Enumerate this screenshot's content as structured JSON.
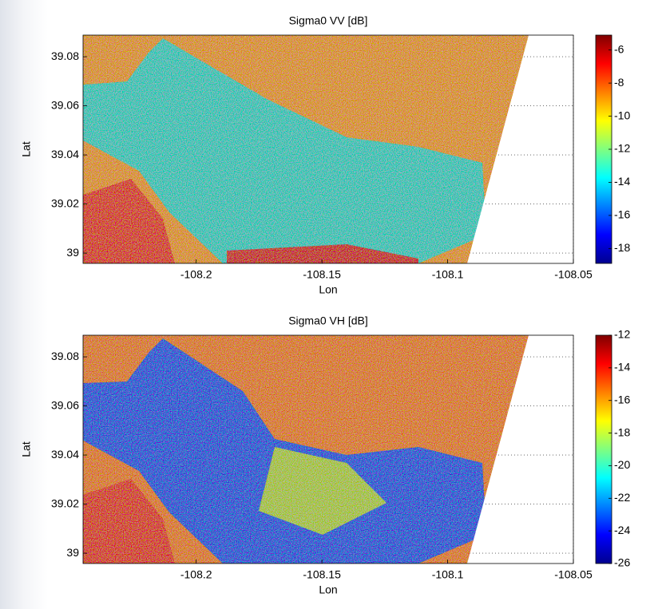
{
  "chart_data": [
    {
      "type": "heatmap",
      "title": "Sigma0 VV [dB]",
      "xlabel": "Lon",
      "ylabel": "Lat",
      "xlim": [
        -108.245,
        -108.05
      ],
      "xticks": [
        -108.2,
        -108.15,
        -108.1,
        -108.05
      ],
      "ylim": [
        38.9958,
        39.0888
      ],
      "yticks": [
        39,
        39.02,
        39.04,
        39.06,
        39.08
      ],
      "grid": true,
      "colormap": "jet",
      "clim": [
        -18.9,
        -5.1
      ],
      "cticks": [
        -18,
        -16,
        -14,
        -12,
        -10,
        -8,
        -6
      ]
    },
    {
      "type": "heatmap",
      "title": "Sigma0 VH [dB]",
      "xlabel": "Lon",
      "ylabel": "Lat",
      "xlim": [
        -108.245,
        -108.05
      ],
      "xticks": [
        -108.2,
        -108.15,
        -108.1,
        -108.05
      ],
      "ylim": [
        38.9958,
        39.0888
      ],
      "yticks": [
        39,
        39.02,
        39.04,
        39.06,
        39.08
      ],
      "grid": true,
      "colormap": "jet",
      "clim": [
        -26,
        -12
      ],
      "cticks": [
        -26,
        -24,
        -22,
        -20,
        -18,
        -16,
        -14,
        -12
      ]
    }
  ]
}
